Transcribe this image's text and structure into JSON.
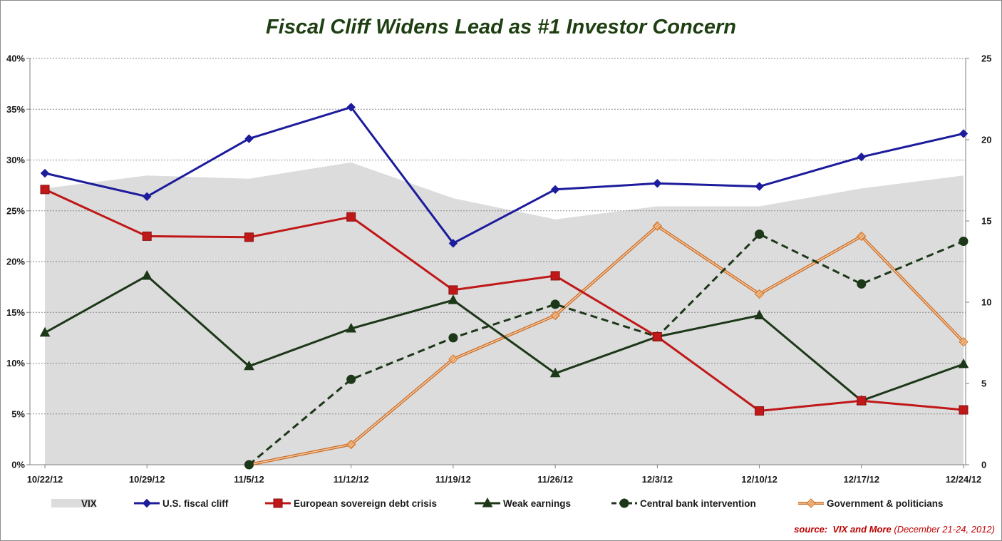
{
  "chart_data": {
    "type": "line",
    "title": "Fiscal Cliff Widens Lead as #1 Investor Concern",
    "categories": [
      "10/22/12",
      "10/29/12",
      "11/5/12",
      "11/12/12",
      "11/19/12",
      "11/26/12",
      "12/3/12",
      "12/10/12",
      "12/17/12",
      "12/24/12"
    ],
    "y_left": {
      "min": 0,
      "max": 40,
      "ticks": [
        0,
        5,
        10,
        15,
        20,
        25,
        30,
        35,
        40
      ],
      "tick_labels": [
        "0%",
        "5%",
        "10%",
        "15%",
        "20%",
        "25%",
        "30%",
        "35%",
        "40%"
      ]
    },
    "y_right": {
      "min": 0,
      "max": 25,
      "ticks": [
        0,
        5,
        10,
        15,
        20,
        25
      ],
      "tick_labels": [
        "0",
        "5",
        "10",
        "15",
        "20",
        "25"
      ]
    },
    "grid": true,
    "legend_position": "bottom",
    "area_series": {
      "name": "VIX",
      "axis": "right",
      "color": "#dcdcdc",
      "values": [
        17.0,
        17.8,
        17.6,
        18.6,
        16.4,
        15.1,
        15.9,
        15.9,
        17.0,
        17.8
      ]
    },
    "series": [
      {
        "name": "U.S. fiscal cliff",
        "axis": "left",
        "color": "#1c1c9c",
        "marker": "diamond",
        "dashed": false,
        "values": [
          28.7,
          26.4,
          32.1,
          35.2,
          21.8,
          27.1,
          27.7,
          27.4,
          30.3,
          32.6
        ]
      },
      {
        "name": "European sovereign debt crisis",
        "axis": "left",
        "color": "#c01818",
        "marker": "square",
        "dashed": false,
        "values": [
          27.1,
          22.5,
          22.4,
          24.4,
          17.2,
          18.6,
          12.6,
          5.3,
          6.3,
          5.4
        ]
      },
      {
        "name": "Weak earnings",
        "axis": "left",
        "color": "#1c3818",
        "marker": "triangle",
        "dashed": false,
        "values": [
          13.0,
          18.6,
          9.7,
          13.4,
          16.2,
          9.0,
          12.6,
          14.7,
          6.3,
          9.9
        ]
      },
      {
        "name": "Central bank intervention",
        "axis": "left",
        "color": "#1c3818",
        "marker": "circle",
        "dashed": true,
        "values": [
          null,
          null,
          0.0,
          8.4,
          12.5,
          15.8,
          12.6,
          22.7,
          17.8,
          22.0
        ]
      },
      {
        "name": "Government & politicians",
        "axis": "left",
        "color": "#e8a070",
        "marker": "hatched-diamond",
        "dashed": false,
        "values": [
          null,
          null,
          0.0,
          2.0,
          10.4,
          14.7,
          23.5,
          16.8,
          22.5,
          12.1
        ]
      }
    ],
    "source": {
      "prefix": "source:",
      "name": "VIX and More",
      "date": "(December 21-24, 2012)"
    }
  }
}
